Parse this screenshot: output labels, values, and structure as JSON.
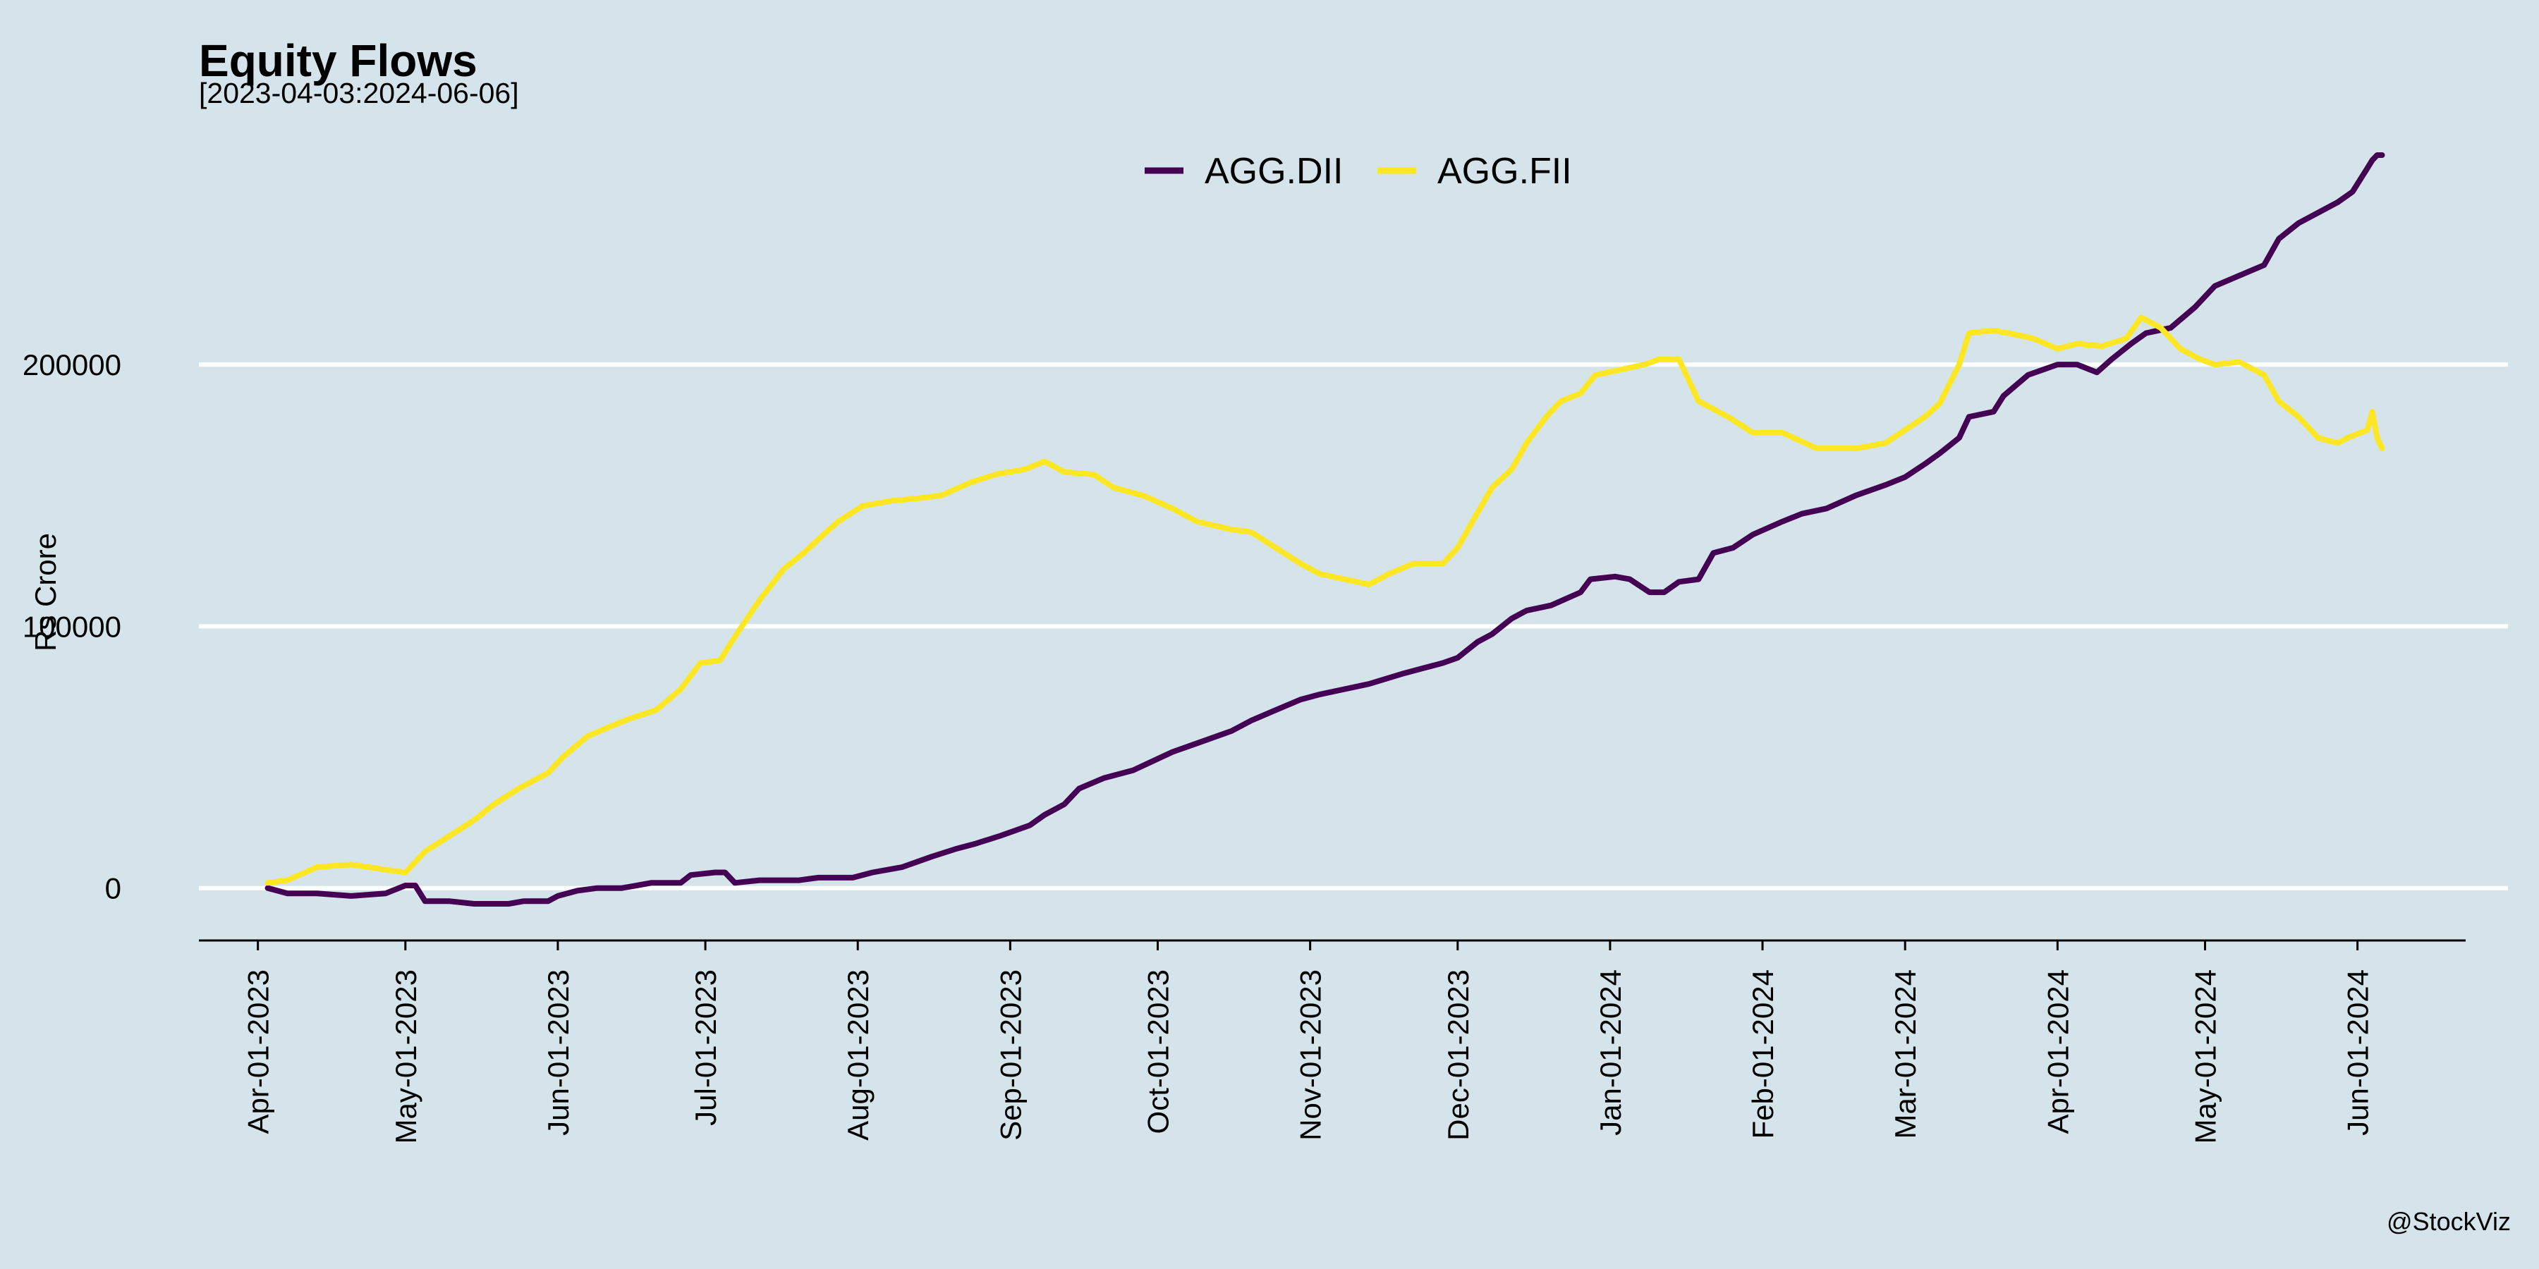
{
  "chart_data": {
    "type": "line",
    "title": "Equity Flows",
    "subtitle": "[2023-04-03:2024-06-06]",
    "ylabel": "Rs Crore",
    "xlabel": "",
    "caption": "@StockViz",
    "legend_position": "top",
    "grid": "horizontal major lines",
    "background_color": "#d5e4eb",
    "ylim": [
      -20000,
      280000
    ],
    "xlim": [
      "2023-03-20",
      "2024-06-23"
    ],
    "yticks": [
      0,
      100000,
      200000
    ],
    "ytick_labels": [
      "0",
      "100000",
      "200000"
    ],
    "xticks": [
      "2023-04-01",
      "2023-05-01",
      "2023-06-01",
      "2023-07-01",
      "2023-08-01",
      "2023-09-01",
      "2023-10-01",
      "2023-11-01",
      "2023-12-01",
      "2024-01-01",
      "2024-02-01",
      "2024-03-01",
      "2024-04-01",
      "2024-05-01",
      "2024-06-01"
    ],
    "xtick_labels": [
      "Apr-01-2023",
      "May-01-2023",
      "Jun-01-2023",
      "Jul-01-2023",
      "Aug-01-2023",
      "Sep-01-2023",
      "Oct-01-2023",
      "Nov-01-2023",
      "Dec-01-2023",
      "Jan-01-2024",
      "Feb-01-2024",
      "Mar-01-2024",
      "Apr-01-2024",
      "May-01-2024",
      "Jun-01-2024"
    ],
    "series": [
      {
        "name": "AGG.DII",
        "color": "#440154",
        "points": [
          [
            "2023-04-03",
            0
          ],
          [
            "2023-04-07",
            -2000
          ],
          [
            "2023-04-13",
            -2000
          ],
          [
            "2023-04-20",
            -3000
          ],
          [
            "2023-04-27",
            -2000
          ],
          [
            "2023-05-01",
            1000
          ],
          [
            "2023-05-03",
            1000
          ],
          [
            "2023-05-05",
            -5000
          ],
          [
            "2023-05-10",
            -5000
          ],
          [
            "2023-05-15",
            -6000
          ],
          [
            "2023-05-22",
            -6000
          ],
          [
            "2023-05-25",
            -5000
          ],
          [
            "2023-05-30",
            -5000
          ],
          [
            "2023-06-01",
            -3000
          ],
          [
            "2023-06-05",
            -1000
          ],
          [
            "2023-06-09",
            0
          ],
          [
            "2023-06-14",
            0
          ],
          [
            "2023-06-20",
            2000
          ],
          [
            "2023-06-26",
            2000
          ],
          [
            "2023-06-28",
            5000
          ],
          [
            "2023-07-03",
            6000
          ],
          [
            "2023-07-05",
            6000
          ],
          [
            "2023-07-07",
            2000
          ],
          [
            "2023-07-12",
            3000
          ],
          [
            "2023-07-20",
            3000
          ],
          [
            "2023-07-24",
            4000
          ],
          [
            "2023-07-31",
            4000
          ],
          [
            "2023-08-04",
            6000
          ],
          [
            "2023-08-10",
            8000
          ],
          [
            "2023-08-16",
            12000
          ],
          [
            "2023-08-21",
            15000
          ],
          [
            "2023-08-25",
            17000
          ],
          [
            "2023-08-30",
            20000
          ],
          [
            "2023-09-05",
            24000
          ],
          [
            "2023-09-08",
            28000
          ],
          [
            "2023-09-12",
            32000
          ],
          [
            "2023-09-15",
            38000
          ],
          [
            "2023-09-20",
            42000
          ],
          [
            "2023-09-26",
            45000
          ],
          [
            "2023-10-04",
            52000
          ],
          [
            "2023-10-10",
            56000
          ],
          [
            "2023-10-16",
            60000
          ],
          [
            "2023-10-20",
            64000
          ],
          [
            "2023-10-25",
            68000
          ],
          [
            "2023-10-30",
            72000
          ],
          [
            "2023-11-03",
            74000
          ],
          [
            "2023-11-08",
            76000
          ],
          [
            "2023-11-13",
            78000
          ],
          [
            "2023-11-20",
            82000
          ],
          [
            "2023-11-24",
            84000
          ],
          [
            "2023-11-28",
            86000
          ],
          [
            "2023-12-01",
            88000
          ],
          [
            "2023-12-05",
            94000
          ],
          [
            "2023-12-08",
            97000
          ],
          [
            "2023-12-12",
            103000
          ],
          [
            "2023-12-15",
            106000
          ],
          [
            "2023-12-20",
            108000
          ],
          [
            "2023-12-26",
            113000
          ],
          [
            "2023-12-28",
            118000
          ],
          [
            "2024-01-02",
            119000
          ],
          [
            "2024-01-05",
            118000
          ],
          [
            "2024-01-09",
            113000
          ],
          [
            "2024-01-12",
            113000
          ],
          [
            "2024-01-15",
            117000
          ],
          [
            "2024-01-19",
            118000
          ],
          [
            "2024-01-22",
            128000
          ],
          [
            "2024-01-26",
            130000
          ],
          [
            "2024-01-30",
            135000
          ],
          [
            "2024-02-05",
            140000
          ],
          [
            "2024-02-09",
            143000
          ],
          [
            "2024-02-14",
            145000
          ],
          [
            "2024-02-20",
            150000
          ],
          [
            "2024-02-26",
            154000
          ],
          [
            "2024-03-01",
            157000
          ],
          [
            "2024-03-05",
            162000
          ],
          [
            "2024-03-08",
            166000
          ],
          [
            "2024-03-12",
            172000
          ],
          [
            "2024-03-14",
            180000
          ],
          [
            "2024-03-19",
            182000
          ],
          [
            "2024-03-21",
            188000
          ],
          [
            "2024-03-26",
            196000
          ],
          [
            "2024-04-01",
            200000
          ],
          [
            "2024-04-05",
            200000
          ],
          [
            "2024-04-09",
            197000
          ],
          [
            "2024-04-12",
            202000
          ],
          [
            "2024-04-16",
            208000
          ],
          [
            "2024-04-19",
            212000
          ],
          [
            "2024-04-24",
            214000
          ],
          [
            "2024-04-29",
            222000
          ],
          [
            "2024-05-03",
            230000
          ],
          [
            "2024-05-08",
            234000
          ],
          [
            "2024-05-13",
            238000
          ],
          [
            "2024-05-16",
            248000
          ],
          [
            "2024-05-20",
            254000
          ],
          [
            "2024-05-24",
            258000
          ],
          [
            "2024-05-28",
            262000
          ],
          [
            "2024-05-31",
            266000
          ],
          [
            "2024-06-03",
            275000
          ],
          [
            "2024-06-04",
            278000
          ],
          [
            "2024-06-05",
            280000
          ],
          [
            "2024-06-06",
            280000
          ]
        ]
      },
      {
        "name": "AGG.FII",
        "color": "#fde725",
        "points": [
          [
            "2023-04-03",
            2000
          ],
          [
            "2023-04-07",
            3000
          ],
          [
            "2023-04-13",
            8000
          ],
          [
            "2023-04-20",
            9000
          ],
          [
            "2023-04-27",
            7000
          ],
          [
            "2023-05-01",
            6000
          ],
          [
            "2023-05-05",
            14000
          ],
          [
            "2023-05-10",
            20000
          ],
          [
            "2023-05-15",
            26000
          ],
          [
            "2023-05-19",
            32000
          ],
          [
            "2023-05-24",
            38000
          ],
          [
            "2023-05-30",
            44000
          ],
          [
            "2023-06-02",
            50000
          ],
          [
            "2023-06-07",
            58000
          ],
          [
            "2023-06-12",
            62000
          ],
          [
            "2023-06-16",
            65000
          ],
          [
            "2023-06-21",
            68000
          ],
          [
            "2023-06-26",
            76000
          ],
          [
            "2023-06-30",
            86000
          ],
          [
            "2023-07-04",
            87000
          ],
          [
            "2023-07-07",
            96000
          ],
          [
            "2023-07-12",
            110000
          ],
          [
            "2023-07-17",
            122000
          ],
          [
            "2023-07-21",
            128000
          ],
          [
            "2023-07-25",
            135000
          ],
          [
            "2023-07-28",
            140000
          ],
          [
            "2023-08-02",
            146000
          ],
          [
            "2023-08-08",
            148000
          ],
          [
            "2023-08-14",
            149000
          ],
          [
            "2023-08-18",
            150000
          ],
          [
            "2023-08-24",
            155000
          ],
          [
            "2023-08-29",
            158000
          ],
          [
            "2023-09-04",
            160000
          ],
          [
            "2023-09-08",
            163000
          ],
          [
            "2023-09-12",
            159000
          ],
          [
            "2023-09-18",
            158000
          ],
          [
            "2023-09-22",
            153000
          ],
          [
            "2023-09-28",
            150000
          ],
          [
            "2023-10-04",
            145000
          ],
          [
            "2023-10-09",
            140000
          ],
          [
            "2023-10-16",
            137000
          ],
          [
            "2023-10-20",
            136000
          ],
          [
            "2023-10-25",
            130000
          ],
          [
            "2023-10-30",
            124000
          ],
          [
            "2023-11-03",
            120000
          ],
          [
            "2023-11-08",
            118000
          ],
          [
            "2023-11-13",
            116000
          ],
          [
            "2023-11-17",
            120000
          ],
          [
            "2023-11-22",
            124000
          ],
          [
            "2023-11-28",
            124000
          ],
          [
            "2023-12-01",
            130000
          ],
          [
            "2023-12-04",
            140000
          ],
          [
            "2023-12-08",
            153000
          ],
          [
            "2023-12-12",
            160000
          ],
          [
            "2023-12-15",
            170000
          ],
          [
            "2023-12-19",
            180000
          ],
          [
            "2023-12-22",
            186000
          ],
          [
            "2023-12-26",
            189000
          ],
          [
            "2023-12-29",
            196000
          ],
          [
            "2024-01-03",
            198000
          ],
          [
            "2024-01-08",
            200000
          ],
          [
            "2024-01-11",
            202000
          ],
          [
            "2024-01-15",
            202000
          ],
          [
            "2024-01-19",
            186000
          ],
          [
            "2024-01-25",
            180000
          ],
          [
            "2024-01-30",
            174000
          ],
          [
            "2024-02-05",
            174000
          ],
          [
            "2024-02-12",
            168000
          ],
          [
            "2024-02-20",
            168000
          ],
          [
            "2024-02-26",
            170000
          ],
          [
            "2024-03-01",
            175000
          ],
          [
            "2024-03-05",
            180000
          ],
          [
            "2024-03-08",
            185000
          ],
          [
            "2024-03-12",
            200000
          ],
          [
            "2024-03-14",
            212000
          ],
          [
            "2024-03-19",
            213000
          ],
          [
            "2024-03-22",
            212000
          ],
          [
            "2024-03-27",
            210000
          ],
          [
            "2024-04-01",
            206000
          ],
          [
            "2024-04-05",
            208000
          ],
          [
            "2024-04-10",
            207000
          ],
          [
            "2024-04-15",
            210000
          ],
          [
            "2024-04-18",
            218000
          ],
          [
            "2024-04-22",
            214000
          ],
          [
            "2024-04-26",
            206000
          ],
          [
            "2024-04-30",
            202000
          ],
          [
            "2024-05-03",
            200000
          ],
          [
            "2024-05-08",
            201000
          ],
          [
            "2024-05-13",
            196000
          ],
          [
            "2024-05-16",
            186000
          ],
          [
            "2024-05-20",
            180000
          ],
          [
            "2024-05-24",
            172000
          ],
          [
            "2024-05-28",
            170000
          ],
          [
            "2024-05-30",
            172000
          ],
          [
            "2024-06-03",
            175000
          ],
          [
            "2024-06-04",
            182000
          ],
          [
            "2024-06-05",
            172000
          ],
          [
            "2024-06-06",
            168000
          ]
        ]
      }
    ]
  }
}
